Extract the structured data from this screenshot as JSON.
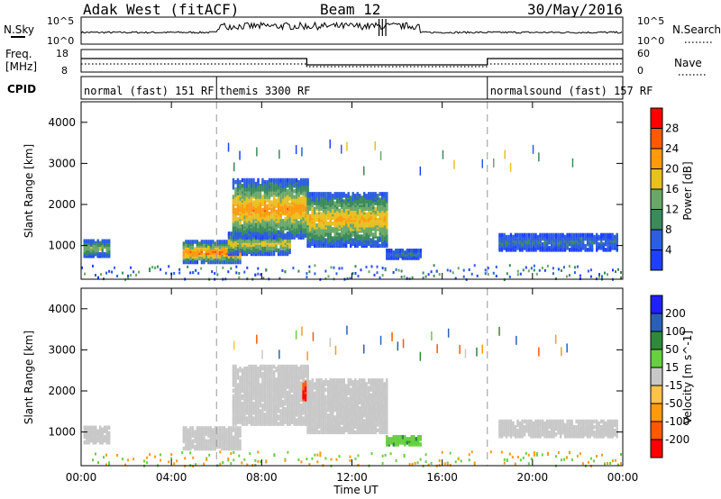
{
  "header": {
    "radar": "Adak West (fitACF)",
    "beam": "Beam 12",
    "date": "30/May/2016"
  },
  "strip_labels": {
    "nsky": "N.Sky",
    "freq_line1": "Freq.",
    "freq_line2": "[MHz]",
    "cpid": "CPID",
    "nsearch": "N.Search",
    "nave": "Nave",
    "noise_tick_top": "10^5",
    "noise_tick_bottom": "10^0",
    "noise_tick_top_right": "10^5",
    "noise_tick_bottom_right": "10^0",
    "freq_tick_top": "18",
    "freq_tick_bottom": "8",
    "nave_tick_top": "60",
    "nave_tick_bottom": "0"
  },
  "cpid_segments": [
    {
      "label": "normal (fast) 151 RF",
      "start_h": 0,
      "end_h": 6
    },
    {
      "label": "themis 3300 RF",
      "start_h": 6,
      "end_h": 18
    },
    {
      "label": "normalsound (fast) 157 RF",
      "start_h": 18,
      "end_h": 24
    }
  ],
  "colors": {
    "power_scale": [
      "#1f3fff",
      "#2c5ee0",
      "#3a8a5a",
      "#6aa86a",
      "#e8c020",
      "#ff9a10",
      "#ff5a00",
      "#ff0000"
    ],
    "velocity_scale": [
      "#ff0000",
      "#ff5a00",
      "#ff9a10",
      "#ffc24a",
      "#c8c8c8",
      "#66d040",
      "#2e8a3a",
      "#2a60b8",
      "#1f1fff"
    ],
    "ground_scatter": "#c8c8c8"
  },
  "chart_data": [
    {
      "type": "heatmap",
      "panel": "power",
      "xlabel": "Time UT",
      "ylabel": "Slant Range [km]",
      "xlim": [
        0,
        24
      ],
      "ylim": [
        180,
        4500
      ],
      "x_ticks": [
        "00:00",
        "04:00",
        "08:00",
        "12:00",
        "16:00",
        "20:00",
        "00:00"
      ],
      "y_ticks": [
        1000,
        2000,
        3000,
        4000
      ],
      "colorbar": {
        "label": "Power [dB]",
        "ticks": [
          4,
          8,
          12,
          16,
          20,
          24,
          28
        ],
        "range": [
          0,
          32
        ]
      },
      "cpid_change_times_h": [
        6,
        18
      ],
      "regions": [
        {
          "t_start": 0.1,
          "t_end": 1.3,
          "r_low": 750,
          "r_high": 1150,
          "level_db": 14
        },
        {
          "t_start": 4.5,
          "t_end": 7.0,
          "r_low": 600,
          "r_high": 1100,
          "level_db": 22
        },
        {
          "t_start": 6.5,
          "t_end": 9.2,
          "r_low": 800,
          "r_high": 1300,
          "level_db": 16
        },
        {
          "t_start": 6.7,
          "t_end": 10.0,
          "r_low": 1200,
          "r_high": 2600,
          "level_db": 20
        },
        {
          "t_start": 10.0,
          "t_end": 13.5,
          "r_low": 1000,
          "r_high": 2300,
          "level_db": 18
        },
        {
          "t_start": 13.5,
          "t_end": 15.0,
          "r_low": 700,
          "r_high": 900,
          "level_db": 8
        },
        {
          "t_start": 18.5,
          "t_end": 23.8,
          "r_low": 900,
          "r_high": 1300,
          "level_db": 8
        }
      ]
    },
    {
      "type": "heatmap",
      "panel": "velocity",
      "xlabel": "Time UT",
      "ylabel": "Slant Range [km]",
      "xlim": [
        0,
        24
      ],
      "ylim": [
        180,
        4500
      ],
      "x_ticks": [
        "00:00",
        "04:00",
        "08:00",
        "12:00",
        "16:00",
        "20:00",
        "00:00"
      ],
      "y_ticks": [
        1000,
        2000,
        3000,
        4000
      ],
      "colorbar": {
        "label": "Velocity [m s^-1]",
        "ticks": [
          -200,
          -100,
          -50,
          -15,
          15,
          50,
          100,
          200
        ],
        "range": [
          -250,
          250
        ]
      },
      "cpid_change_times_h": [
        6,
        18
      ],
      "regions": [
        {
          "t_start": 0.1,
          "t_end": 1.3,
          "r_low": 750,
          "r_high": 1150,
          "velocity": 0
        },
        {
          "t_start": 4.5,
          "t_end": 7.0,
          "r_low": 600,
          "r_high": 1100,
          "velocity": 0
        },
        {
          "t_start": 6.7,
          "t_end": 10.0,
          "r_low": 1200,
          "r_high": 2600,
          "velocity": 0
        },
        {
          "t_start": 9.8,
          "t_end": 10.1,
          "r_low": 1800,
          "r_high": 2250,
          "velocity": -200
        },
        {
          "t_start": 10.0,
          "t_end": 13.5,
          "r_low": 1000,
          "r_high": 2300,
          "velocity": 0
        },
        {
          "t_start": 13.5,
          "t_end": 15.0,
          "r_low": 700,
          "r_high": 900,
          "velocity": 40
        },
        {
          "t_start": 18.5,
          "t_end": 23.8,
          "r_low": 900,
          "r_high": 1300,
          "velocity": 0
        }
      ]
    }
  ]
}
